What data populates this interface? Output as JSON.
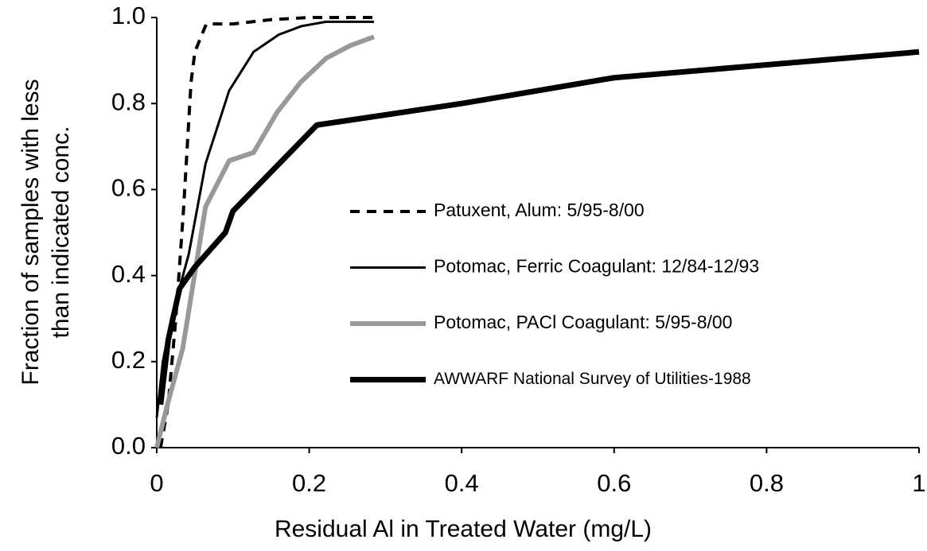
{
  "chart_data": {
    "type": "line",
    "xlabel": "Residual Al in Treated Water (mg/L)",
    "ylabel": [
      "Fraction of samples with less",
      "than indicated conc."
    ],
    "xlim": [
      0,
      1
    ],
    "xticks": [
      0,
      0.2,
      0.4,
      0.6,
      0.8,
      1
    ],
    "ylim": [
      0,
      1
    ],
    "yticks": [
      {
        "value": 0,
        "label": "0.0"
      },
      0.2,
      0.4,
      0.6,
      0.8,
      {
        "value": 1,
        "label": "1.0"
      }
    ],
    "legend": "center",
    "series": [
      {
        "name": "Patuxent, Alum: 5/95-8/00",
        "color": "#000000",
        "x": [
          0.005,
          0.015,
          0.025,
          0.035,
          0.045,
          0.05,
          0.065,
          0.1,
          0.15,
          0.2,
          0.285
        ],
        "values": [
          0.0,
          0.1,
          0.3,
          0.55,
          0.85,
          0.92,
          0.985,
          0.985,
          0.995,
          1.0,
          1.0
        ]
      },
      {
        "name": "Potomac, Ferric Coagulant: 12/84-12/93",
        "color": "#000000",
        "x": [
          0,
          0.008,
          0.019,
          0.042,
          0.064,
          0.095,
          0.127,
          0.16,
          0.19,
          0.222,
          0.285
        ],
        "values": [
          0.07,
          0.2,
          0.3,
          0.45,
          0.66,
          0.83,
          0.92,
          0.96,
          0.98,
          0.99,
          0.99
        ]
      },
      {
        "name": "Potomac, PACl Coagulant: 5/95-8/00",
        "color": "#999999",
        "x": [
          0,
          0.014,
          0.034,
          0.064,
          0.095,
          0.127,
          0.158,
          0.189,
          0.222,
          0.254,
          0.285
        ],
        "values": [
          0,
          0.1,
          0.23,
          0.56,
          0.667,
          0.686,
          0.78,
          0.85,
          0.905,
          0.935,
          0.955
        ]
      },
      {
        "name": "AWWARF National Survey of Utilities-1988",
        "color": "#000000",
        "x": [
          0.005,
          0.015,
          0.03,
          0.05,
          0.09,
          0.1,
          0.21,
          0.4,
          0.6,
          1
        ],
        "values": [
          0.1,
          0.25,
          0.37,
          0.42,
          0.5,
          0.55,
          0.75,
          0.8,
          0.86,
          0.92
        ]
      }
    ]
  }
}
